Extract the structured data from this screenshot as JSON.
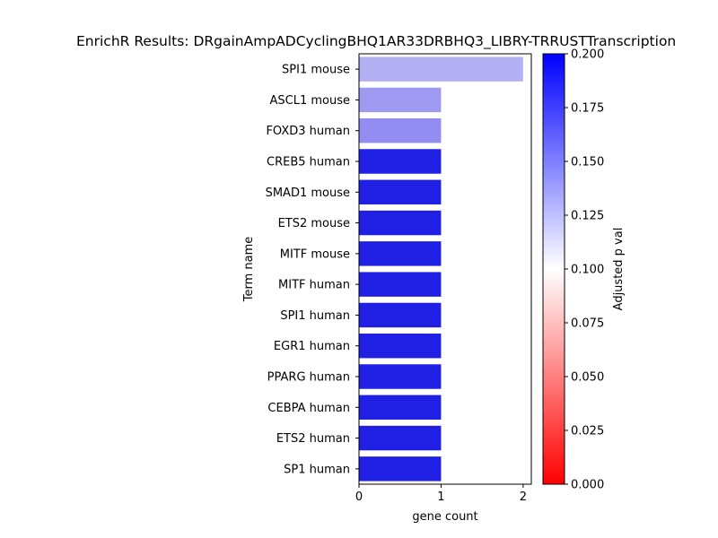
{
  "chart_data": {
    "type": "bar",
    "orientation": "horizontal",
    "title": "EnrichR Results: DRgainAmpADCyclingBHQ1AR33DRBHQ3_LIBRY-TRRUSTTranscription",
    "xlabel": "gene count",
    "ylabel": "Term name",
    "xlim": [
      0,
      2.1
    ],
    "xticks": [
      "0",
      "1",
      "2"
    ],
    "categories": [
      "SPI1 mouse",
      "ASCL1 mouse",
      "FOXD3 human",
      "CREB5 human",
      "SMAD1 mouse",
      "ETS2 mouse",
      "MITF mouse",
      "MITF human",
      "SPI1 human",
      "EGR1 human",
      "PPARG human",
      "CEBPA human",
      "ETS2 human",
      "SP1 human"
    ],
    "values": [
      2,
      1,
      1,
      1,
      1,
      1,
      1,
      1,
      1,
      1,
      1,
      1,
      1,
      1
    ],
    "bar_colors": [
      "#b4b0f4",
      "#9e9af2",
      "#938df1",
      "#2020e4",
      "#2020e4",
      "#2020e4",
      "#2020e4",
      "#2020e4",
      "#2020e4",
      "#2020e4",
      "#2020e4",
      "#2020e4",
      "#2020e4",
      "#2020e4"
    ],
    "grid": false,
    "colorbar": {
      "label": "Adjusted p val",
      "range": [
        0,
        0.2
      ],
      "ticks": [
        "0.000",
        "0.025",
        "0.050",
        "0.075",
        "0.100",
        "0.125",
        "0.150",
        "0.175",
        "0.200"
      ],
      "colors": [
        "#ff0000",
        "#ffffff",
        "#0000ff"
      ]
    }
  }
}
